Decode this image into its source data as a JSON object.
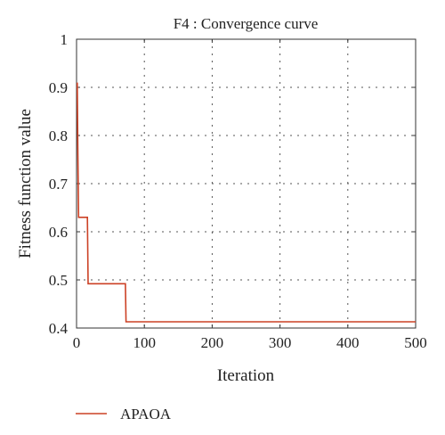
{
  "chart_data": {
    "type": "line",
    "title": "F4 : Convergence curve",
    "xlabel": "Iteration",
    "ylabel": "Fitness function value",
    "xlim": [
      0,
      500
    ],
    "ylim": [
      0.4,
      1
    ],
    "xticks": [
      0,
      100,
      200,
      300,
      400,
      500
    ],
    "xtick_labels": [
      "0",
      "100",
      "200",
      "300",
      "400",
      "500"
    ],
    "yticks": [
      0.4,
      0.5,
      0.6,
      0.7,
      0.8,
      0.9,
      1
    ],
    "ytick_labels": [
      "0.4",
      "0.5",
      "0.6",
      "0.7",
      "0.8",
      "0.9",
      "1"
    ],
    "grid": true,
    "grid_style": "dotted",
    "legend_position": "bottom-left",
    "series": [
      {
        "name": "APAOA",
        "color": "#cc4125",
        "x": [
          1,
          2,
          3,
          4,
          16,
          17,
          72,
          73,
          500
        ],
        "y": [
          0.91,
          0.76,
          0.63,
          0.63,
          0.63,
          0.492,
          0.492,
          0.413,
          0.413
        ]
      }
    ]
  }
}
